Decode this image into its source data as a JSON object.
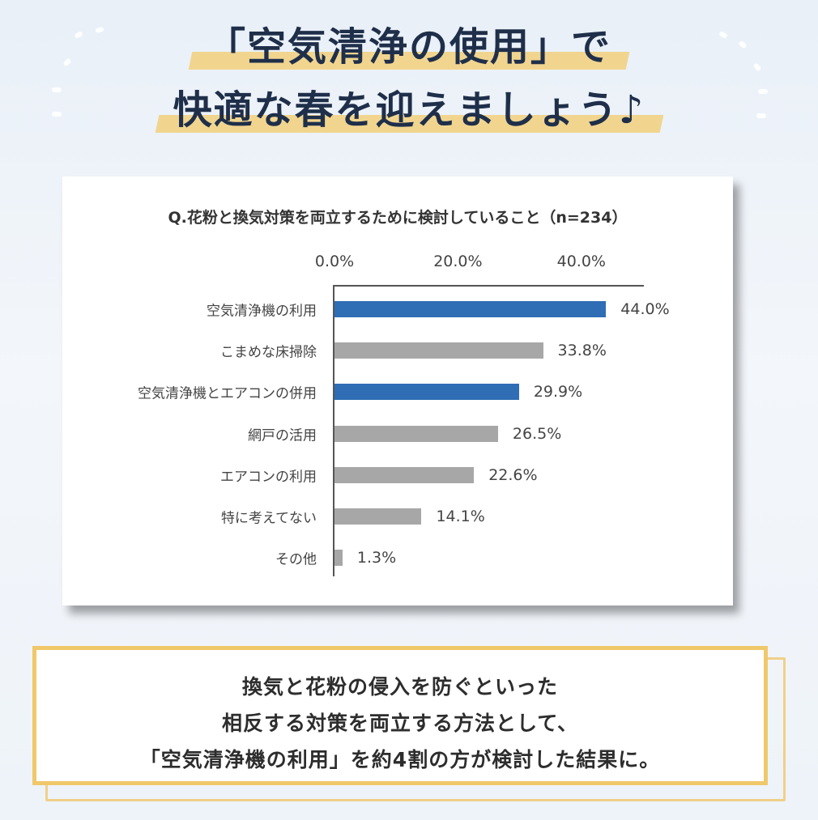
{
  "header": {
    "title_line1": "「空気清浄の使用」で",
    "title_line2": "快適な春を迎えましょう♪"
  },
  "colors": {
    "highlight": "#2f6db5",
    "default_bar": "#a7a7a7",
    "title_underline": "#f1d58f",
    "note_border": "#f0c86a"
  },
  "chart_data": {
    "type": "bar",
    "orientation": "horizontal",
    "title": "Q.花粉と換気対策を両立するために検討していること（n=234）",
    "categories": [
      "空気清浄機の利用",
      "こまめな床掃除",
      "空気清浄機とエアコンの併用",
      "網戸の活用",
      "エアコンの利用",
      "特に考えてない",
      "その他"
    ],
    "values": [
      44.0,
      33.8,
      29.9,
      26.5,
      22.6,
      14.1,
      1.3
    ],
    "value_labels": [
      "44.0%",
      "33.8%",
      "29.9%",
      "26.5%",
      "22.6%",
      "14.1%",
      "1.3%"
    ],
    "highlighted": [
      true,
      false,
      true,
      false,
      false,
      false,
      false
    ],
    "x_ticks": [
      0,
      20,
      40
    ],
    "x_tick_labels": [
      "0.0%",
      "20.0%",
      "40.0%"
    ],
    "xlim": [
      0,
      50
    ],
    "xaxis_position": "top",
    "grid": false,
    "legend": "none"
  },
  "note": {
    "line1": "換気と花粉の侵入を防ぐといった",
    "line2": "相反する対策を両立する方法として、",
    "line3": "「空気清浄機の利用」を約4割の方が検討した結果に。"
  }
}
